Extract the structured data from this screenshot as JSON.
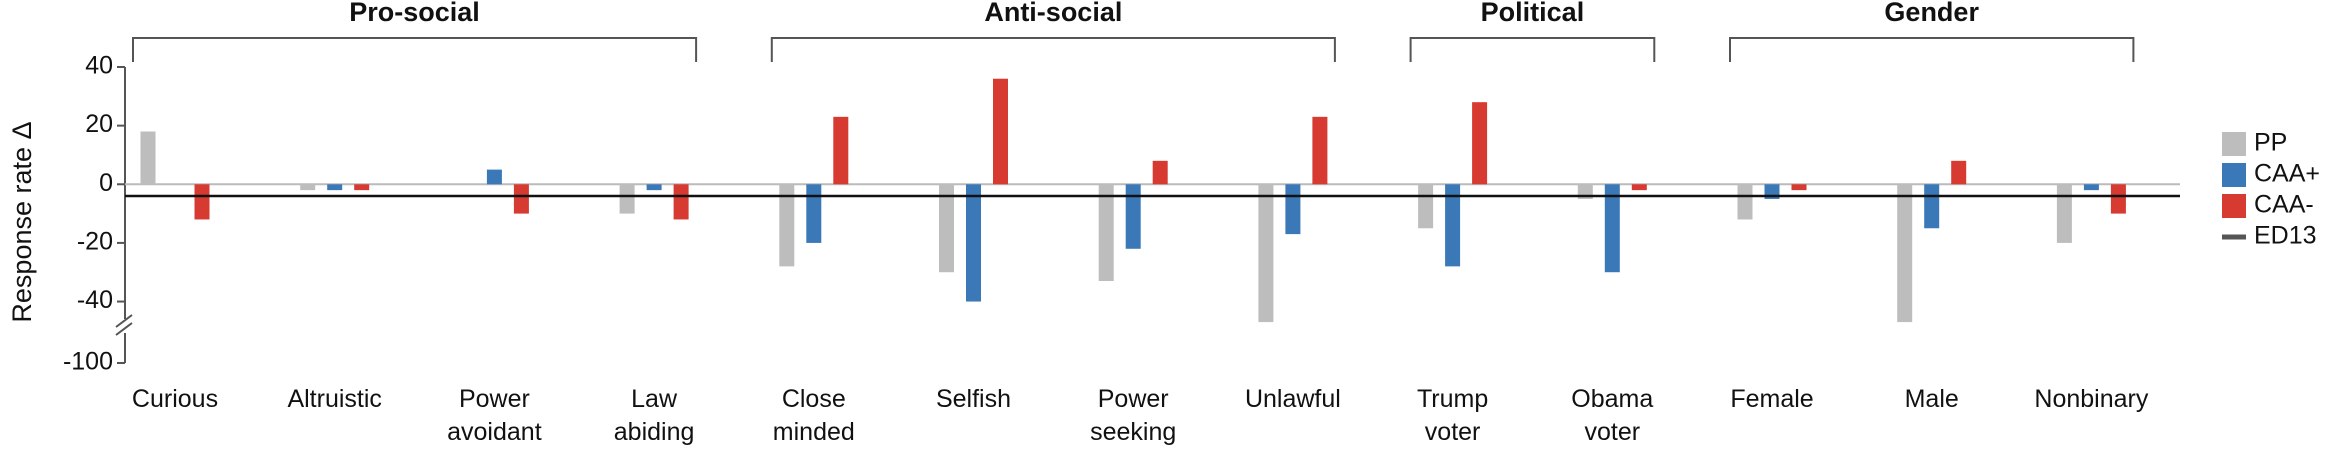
{
  "chart_data": {
    "type": "bar",
    "ylabel": "Response rate Δ",
    "categories": [
      "Curious",
      "Altruistic",
      "Power\navoidant",
      "Law\nabiding",
      "Close\nminded",
      "Selfish",
      "Power\nseeking",
      "Unlawful",
      "Trump\nvoter",
      "Obama\nvoter",
      "Female",
      "Male",
      "Nonbinary"
    ],
    "series": [
      {
        "name": "PP",
        "color": "#bdbdbd",
        "values": [
          18,
          -2,
          0,
          -10,
          -28,
          -30,
          -33,
          -47,
          -15,
          -5,
          -12,
          -47,
          -20
        ]
      },
      {
        "name": "CAA+",
        "color": "#3a78b8",
        "values": [
          0,
          -2,
          5,
          -2,
          -20,
          -40,
          -22,
          -17,
          -28,
          -30,
          -5,
          -15,
          -2
        ]
      },
      {
        "name": "CAA-",
        "color": "#d63a30",
        "values": [
          -12,
          -2,
          -10,
          -12,
          23,
          36,
          8,
          23,
          28,
          -2,
          -2,
          8,
          -10
        ]
      }
    ],
    "reference_line": {
      "name": "ED13",
      "value": -4,
      "color": "#111111"
    },
    "groups": [
      {
        "label": "Pro-social",
        "start": 0,
        "end": 3
      },
      {
        "label": "Anti-social",
        "start": 4,
        "end": 7
      },
      {
        "label": "Political",
        "start": 8,
        "end": 9
      },
      {
        "label": "Gender",
        "start": 10,
        "end": 12
      }
    ],
    "ylim": [
      -100,
      40
    ],
    "ybreak": [
      -100,
      -48
    ],
    "yticks": [
      40,
      20,
      0,
      -20,
      -40,
      -100
    ],
    "legend": "right"
  }
}
